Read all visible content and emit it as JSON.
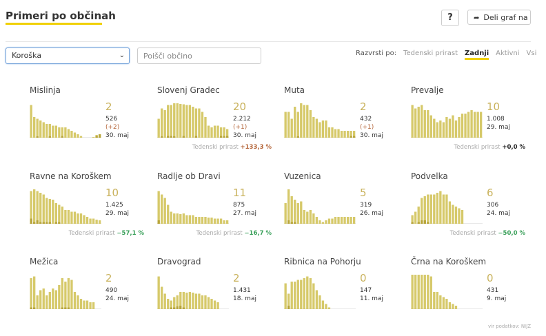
{
  "header": {
    "title": "Primeri po občinah",
    "help_label": "?",
    "share_label": "Deli graf na"
  },
  "filters": {
    "region_value": "Koroška",
    "search_placeholder": "Poišči občino"
  },
  "sort": {
    "label": "Razvrsti po:",
    "options": [
      "Tedenski prirast",
      "Zadnji",
      "Aktivni",
      "Vsi"
    ],
    "active": "Zadnji"
  },
  "colors": {
    "bar": "#d6c96a",
    "bar_dark": "#b8a53a",
    "accent": "#f0d000",
    "up": "#b5663a",
    "down": "#3aa05a",
    "neutral": "#222222"
  },
  "municipalities": [
    {
      "name": "Mislinja",
      "active": "2",
      "cumulative": "526",
      "delta": "(+2)",
      "date": "30. maj",
      "weekly_label": "",
      "weekly_value": "",
      "weekly_dir": "",
      "bars": [
        0.95,
        0.6,
        0.55,
        0.5,
        0.45,
        0.4,
        0.4,
        0.35,
        0.35,
        0.3,
        0.3,
        0.3,
        0.25,
        0.2,
        0.15,
        0.1,
        0.05,
        0,
        0,
        0,
        0.02,
        0.08,
        0.1
      ],
      "marks": [
        0,
        0,
        0.03,
        0,
        0,
        0,
        0.03,
        0,
        0,
        0,
        0.05,
        0,
        0,
        0,
        0,
        0,
        0,
        0,
        0,
        0,
        0,
        0.05,
        0.1
      ]
    },
    {
      "name": "Slovenj Gradec",
      "active": "20",
      "cumulative": "2.212",
      "delta": "(+1)",
      "date": "30. maj",
      "weekly_label": "Tedenski prirast",
      "weekly_value": "+133,3 %",
      "weekly_dir": "up",
      "bars": [
        0.55,
        0.85,
        0.8,
        0.95,
        0.95,
        1.0,
        1.0,
        0.98,
        0.97,
        0.95,
        0.95,
        0.9,
        0.85,
        0.85,
        0.75,
        0.6,
        0.35,
        0.3,
        0.35,
        0.35,
        0.3,
        0.3,
        0.25
      ],
      "marks": [
        0,
        0.03,
        0,
        0.05,
        0.05,
        0.03,
        0,
        0,
        0.05,
        0,
        0,
        0,
        0.05,
        0,
        0,
        0,
        0,
        0,
        0,
        0,
        0.05,
        0.05,
        0.05
      ]
    },
    {
      "name": "Muta",
      "active": "2",
      "cumulative": "432",
      "delta": "(+1)",
      "date": "30. maj",
      "weekly_label": "",
      "weekly_value": "",
      "weekly_dir": "",
      "bars": [
        0.75,
        0.75,
        0.55,
        0.9,
        0.75,
        1.0,
        0.95,
        0.95,
        0.8,
        0.6,
        0.55,
        0.45,
        0.5,
        0.5,
        0.3,
        0.3,
        0.25,
        0.25,
        0.2,
        0.2,
        0.2,
        0.2,
        0.2
      ],
      "marks": [
        0,
        0,
        0,
        0,
        0.03,
        0,
        0,
        0,
        0,
        0,
        0,
        0,
        0,
        0,
        0,
        0,
        0,
        0,
        0,
        0,
        0,
        0.05,
        0.05
      ]
    },
    {
      "name": "Prevalje",
      "active": "10",
      "cumulative": "1.008",
      "delta": "",
      "date": "29. maj",
      "weekly_label": "Tedenski prirast",
      "weekly_value": "+0,0 %",
      "weekly_dir": "neutral",
      "bars": [
        0.95,
        0.85,
        0.9,
        0.95,
        0.8,
        0.8,
        0.65,
        0.55,
        0.45,
        0.5,
        0.45,
        0.6,
        0.55,
        0.65,
        0.5,
        0.6,
        0.7,
        0.7,
        0.75,
        0.8,
        0.75,
        0.75,
        0.75
      ],
      "marks": [
        0,
        0,
        0,
        0,
        0,
        0,
        0,
        0,
        0,
        0,
        0,
        0,
        0,
        0,
        0,
        0,
        0,
        0,
        0,
        0,
        0,
        0,
        0
      ]
    },
    {
      "name": "Ravne na Koroškem",
      "active": "10",
      "cumulative": "1.425",
      "delta": "",
      "date": "29. maj",
      "weekly_label": "Tedenski prirast",
      "weekly_value": "−57,1 %",
      "weekly_dir": "down",
      "bars": [
        0.95,
        1.0,
        0.95,
        0.9,
        0.85,
        0.75,
        0.72,
        0.7,
        0.6,
        0.55,
        0.5,
        0.4,
        0.4,
        0.35,
        0.35,
        0.3,
        0.3,
        0.25,
        0.2,
        0.15,
        0.15,
        0.12,
        0.1
      ],
      "marks": [
        0.15,
        0.05,
        0.1,
        0.05,
        0.05,
        0.05,
        0.05,
        0,
        0.05,
        0.05,
        0,
        0,
        0,
        0,
        0,
        0,
        0,
        0,
        0,
        0,
        0,
        0,
        0
      ]
    },
    {
      "name": "Radlje ob Dravi",
      "active": "11",
      "cumulative": "875",
      "delta": "",
      "date": "27. maj",
      "weekly_label": "Tedenski prirast",
      "weekly_value": "−16,7 %",
      "weekly_dir": "down",
      "bars": [
        0.95,
        0.85,
        0.75,
        0.55,
        0.35,
        0.3,
        0.3,
        0.28,
        0.3,
        0.25,
        0.25,
        0.25,
        0.2,
        0.2,
        0.2,
        0.2,
        0.18,
        0.18,
        0.15,
        0.15,
        0.15,
        0.1,
        0.1
      ],
      "marks": [
        0.1,
        0,
        0,
        0,
        0,
        0,
        0,
        0,
        0,
        0,
        0,
        0,
        0,
        0,
        0,
        0,
        0,
        0,
        0,
        0,
        0,
        0,
        0
      ]
    },
    {
      "name": "Vuzenica",
      "active": "5",
      "cumulative": "319",
      "delta": "",
      "date": "26. maj",
      "weekly_label": "",
      "weekly_value": "",
      "weekly_dir": "",
      "bars": [
        0.6,
        1.0,
        0.8,
        0.7,
        0.6,
        0.65,
        0.4,
        0.35,
        0.4,
        0.3,
        0.2,
        0.1,
        0.05,
        0.1,
        0.15,
        0.15,
        0.2,
        0.2,
        0.2,
        0.2,
        0.2,
        0.2,
        0.2
      ],
      "marks": [
        0,
        0.1,
        0.05,
        0.05,
        0,
        0,
        0,
        0,
        0,
        0,
        0,
        0,
        0,
        0,
        0,
        0,
        0,
        0,
        0,
        0,
        0,
        0,
        0
      ]
    },
    {
      "name": "Podvelka",
      "active": "6",
      "cumulative": "306",
      "delta": "",
      "date": "24. maj",
      "weekly_label": "Tedenski prirast",
      "weekly_value": "−50,0 %",
      "weekly_dir": "down",
      "bars": [
        0.25,
        0.35,
        0.5,
        0.75,
        0.8,
        0.85,
        0.85,
        0.85,
        0.9,
        0.95,
        0.85,
        0.85,
        0.65,
        0.55,
        0.5,
        0.45,
        0.4,
        0,
        0,
        0,
        0,
        0,
        0
      ],
      "marks": [
        0.05,
        0,
        0.05,
        0.1,
        0.1,
        0.05,
        0,
        0,
        0,
        0,
        0,
        0,
        0,
        0,
        0,
        0,
        0,
        0,
        0,
        0,
        0,
        0,
        0
      ]
    },
    {
      "name": "Mežica",
      "active": "2",
      "cumulative": "490",
      "delta": "",
      "date": "24. maj",
      "weekly_label": "",
      "weekly_value": "",
      "weekly_dir": "",
      "bars": [
        0.9,
        0.95,
        0.4,
        0.55,
        0.6,
        0.4,
        0.5,
        0.6,
        0.55,
        0.7,
        0.9,
        0.8,
        0.9,
        0.85,
        0.5,
        0.4,
        0.3,
        0.25,
        0.25,
        0.2,
        0.2,
        0,
        0
      ],
      "marks": [
        0.05,
        0.05,
        0,
        0,
        0,
        0,
        0,
        0,
        0,
        0,
        0.05,
        0.05,
        0.05,
        0,
        0,
        0,
        0,
        0,
        0,
        0,
        0,
        0,
        0
      ]
    },
    {
      "name": "Dravograd",
      "active": "2",
      "cumulative": "1.431",
      "delta": "",
      "date": "18. maj",
      "weekly_label": "",
      "weekly_value": "",
      "weekly_dir": "",
      "bars": [
        0.95,
        0.65,
        0.45,
        0.3,
        0.25,
        0.35,
        0.4,
        0.5,
        0.5,
        0.48,
        0.5,
        0.48,
        0.45,
        0.45,
        0.4,
        0.4,
        0.35,
        0.3,
        0.25,
        0.2,
        0,
        0,
        0
      ],
      "marks": [
        0,
        0,
        0,
        0,
        0.05,
        0.05,
        0.08,
        0.1,
        0.05,
        0,
        0,
        0,
        0,
        0,
        0,
        0,
        0,
        0,
        0,
        0,
        0,
        0,
        0
      ]
    },
    {
      "name": "Ribnica na Pohorju",
      "active": "0",
      "cumulative": "147",
      "delta": "",
      "date": "11. maj",
      "weekly_label": "",
      "weekly_value": "",
      "weekly_dir": "",
      "bars": [
        0.75,
        0.45,
        0.8,
        0.8,
        0.85,
        0.85,
        0.9,
        0.95,
        0.9,
        0.75,
        0.55,
        0.4,
        0.25,
        0.15,
        0.05,
        0,
        0,
        0,
        0,
        0,
        0,
        0,
        0
      ],
      "marks": [
        0,
        0.1,
        0,
        0,
        0,
        0,
        0,
        0,
        0,
        0,
        0,
        0,
        0,
        0,
        0,
        0,
        0,
        0,
        0,
        0,
        0,
        0,
        0
      ]
    },
    {
      "name": "Črna na Koroškem",
      "active": "0",
      "cumulative": "431",
      "delta": "",
      "date": "9. maj",
      "weekly_label": "",
      "weekly_value": "",
      "weekly_dir": "",
      "bars": [
        1.0,
        1.0,
        1.0,
        1.0,
        1.0,
        1.0,
        0.95,
        0.5,
        0.5,
        0.4,
        0.35,
        0.3,
        0.2,
        0.15,
        0.1,
        0,
        0,
        0,
        0,
        0,
        0,
        0,
        0
      ],
      "marks": [
        0,
        0,
        0,
        0,
        0,
        0,
        0,
        0,
        0,
        0,
        0,
        0,
        0,
        0,
        0,
        0,
        0,
        0,
        0,
        0,
        0,
        0,
        0
      ]
    }
  ],
  "footer": {
    "source": "vir podatkov: NIJZ"
  }
}
